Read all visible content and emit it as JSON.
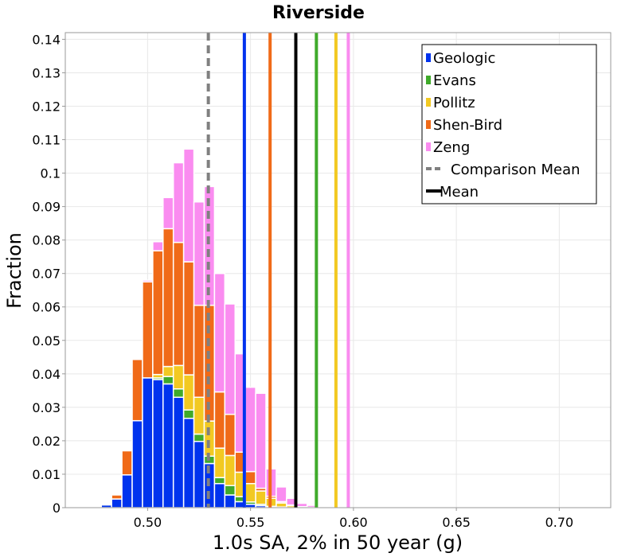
{
  "chart_data": {
    "type": "bar",
    "title": "Riverside",
    "xlabel": "1.0s SA, 2% in 50 year (g)",
    "ylabel": "Fraction",
    "xlim": [
      0.46,
      0.725
    ],
    "ylim": [
      0,
      0.142
    ],
    "x_ticks": [
      "0.50",
      "0.55",
      "0.60",
      "0.65",
      "0.70"
    ],
    "x_tick_values": [
      0.5,
      0.55,
      0.6,
      0.65,
      0.7
    ],
    "y_ticks": [
      "0",
      "0.01",
      "0.02",
      "0.03",
      "0.04",
      "0.05",
      "0.06",
      "0.07",
      "0.08",
      "0.09",
      "0.1",
      "0.11",
      "0.12",
      "0.13",
      "0.14"
    ],
    "y_tick_values": [
      0,
      0.01,
      0.02,
      0.03,
      0.04,
      0.05,
      0.06,
      0.07,
      0.08,
      0.09,
      0.1,
      0.11,
      0.12,
      0.13,
      0.14
    ],
    "bin_width": 0.005,
    "bin_centers": [
      0.48,
      0.485,
      0.49,
      0.495,
      0.5,
      0.505,
      0.51,
      0.515,
      0.52,
      0.525,
      0.53,
      0.535,
      0.54,
      0.545,
      0.55,
      0.555,
      0.56,
      0.565,
      0.57,
      0.575,
      0.58,
      0.585,
      0.59,
      0.595,
      0.6,
      0.605,
      0.61,
      0.615,
      0.62,
      0.625,
      0.63,
      0.635,
      0.64,
      0.645,
      0.65,
      0.655,
      0.66,
      0.665,
      0.67,
      0.675,
      0.68,
      0.685,
      0.69,
      0.695,
      0.7,
      0.705,
      0.71,
      0.715,
      0.72
    ],
    "stacked": true,
    "grid": true,
    "legend_position": "top-right",
    "series": [
      {
        "name": "Geologic",
        "color": "#0033ee",
        "values": [
          0.0008,
          0.0026,
          0.0098,
          0.026,
          0.0388,
          0.0383,
          0.037,
          0.033,
          0.0267,
          0.0198,
          0.0132,
          0.0072,
          0.0038,
          0.0018,
          0.001,
          0.0006,
          0.0002,
          0.0001,
          0,
          0,
          0,
          0,
          0,
          0,
          0,
          0,
          0,
          0,
          0,
          0,
          0,
          0,
          0,
          0,
          0,
          0,
          0,
          0,
          0,
          0,
          0,
          0,
          0,
          0,
          0,
          0,
          0,
          0,
          0
        ]
      },
      {
        "name": "Evans",
        "color": "#3faa2a",
        "values": [
          0,
          0,
          0,
          0,
          0,
          0.0005,
          0.0022,
          0.0025,
          0.0025,
          0.0022,
          0.0022,
          0.0018,
          0.0028,
          0.0015,
          0.0007,
          0.0004,
          0.0002,
          0.0001,
          0,
          0,
          0,
          0,
          0,
          0,
          0,
          0,
          0,
          0,
          0,
          0,
          0,
          0,
          0,
          0,
          0,
          0,
          0,
          0,
          0,
          0,
          0,
          0,
          0,
          0,
          0,
          0,
          0,
          0,
          0
        ]
      },
      {
        "name": "Pollitz",
        "color": "#f2c922",
        "values": [
          0,
          0,
          0,
          0,
          0,
          0.001,
          0.003,
          0.007,
          0.0105,
          0.011,
          0.0105,
          0.0088,
          0.009,
          0.0073,
          0.0055,
          0.004,
          0.0024,
          0.0012,
          0.0006,
          0.0002,
          0.0001,
          0,
          0,
          0,
          0,
          0,
          0,
          0,
          0,
          0,
          0,
          0,
          0,
          0,
          0,
          0,
          0,
          0,
          0,
          0,
          0,
          0,
          0,
          0,
          0,
          0,
          0,
          0,
          0
        ]
      },
      {
        "name": "Shen-Bird",
        "color": "#f06a18",
        "values": [
          0,
          0.0012,
          0.0072,
          0.0183,
          0.0287,
          0.037,
          0.0412,
          0.0368,
          0.0338,
          0.0275,
          0.0346,
          0.0168,
          0.0123,
          0.006,
          0.0036,
          0.0008,
          0.0006,
          0.0004,
          0.0002,
          0.0001,
          0,
          0,
          0,
          0,
          0,
          0,
          0,
          0,
          0,
          0,
          0,
          0,
          0,
          0,
          0,
          0,
          0,
          0,
          0,
          0,
          0,
          0,
          0,
          0,
          0,
          0,
          0,
          0,
          0
        ]
      },
      {
        "name": "Zeng",
        "color": "#fa8cf0",
        "values": [
          0,
          0,
          0,
          0,
          0.0005,
          0.0027,
          0.0093,
          0.0238,
          0.0337,
          0.0309,
          0.0355,
          0.0354,
          0.033,
          0.0294,
          0.0252,
          0.0284,
          0.0082,
          0.0044,
          0.002,
          0.001,
          0.0006,
          0.0003,
          0.0002,
          0.0001,
          0,
          0,
          0,
          0,
          0,
          0,
          0,
          0,
          0,
          0,
          0,
          0,
          0,
          0,
          0,
          0,
          0,
          0,
          0,
          0,
          0,
          0,
          0,
          0,
          0
        ]
      }
    ],
    "vertical_lines": [
      {
        "name": "Comparison Mean",
        "x": 0.5295,
        "color": "#808080",
        "style": "dashed",
        "in_legend": true
      },
      {
        "name": "Mean",
        "x": 0.572,
        "color": "#000000",
        "style": "solid",
        "in_legend": true
      },
      {
        "name": "Geologic",
        "x": 0.547,
        "color": "#0033ee",
        "style": "solid",
        "in_legend": false
      },
      {
        "name": "Shen-Bird",
        "x": 0.5595,
        "color": "#f06a18",
        "style": "solid",
        "in_legend": false
      },
      {
        "name": "Evans",
        "x": 0.582,
        "color": "#3faa2a",
        "style": "solid",
        "in_legend": false
      },
      {
        "name": "Pollitz",
        "x": 0.5915,
        "color": "#f2c922",
        "style": "solid",
        "in_legend": false
      },
      {
        "name": "Zeng",
        "x": 0.5975,
        "color": "#fa8cf0",
        "style": "solid",
        "in_legend": false
      }
    ],
    "legend": [
      {
        "label": "Geologic",
        "color": "#0033ee",
        "kind": "box"
      },
      {
        "label": "Evans",
        "color": "#3faa2a",
        "kind": "box"
      },
      {
        "label": "Pollitz",
        "color": "#f2c922",
        "kind": "box"
      },
      {
        "label": "Shen-Bird",
        "color": "#f06a18",
        "kind": "box"
      },
      {
        "label": "Zeng",
        "color": "#fa8cf0",
        "kind": "box"
      },
      {
        "label": "Comparison Mean",
        "color": "#808080",
        "kind": "dashed-line"
      },
      {
        "label": "Mean",
        "color": "#000000",
        "kind": "solid-line"
      }
    ]
  }
}
